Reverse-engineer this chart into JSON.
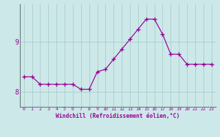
{
  "xlabel": "Windchill (Refroidissement éolien,°C)",
  "x": [
    0,
    1,
    2,
    3,
    4,
    5,
    6,
    7,
    8,
    9,
    10,
    11,
    12,
    13,
    14,
    15,
    16,
    17,
    18,
    19,
    20,
    21,
    22,
    23
  ],
  "y": [
    8.3,
    8.3,
    8.15,
    8.15,
    8.15,
    8.15,
    8.15,
    8.05,
    8.05,
    8.4,
    8.45,
    8.65,
    8.85,
    9.05,
    9.25,
    9.45,
    9.45,
    9.15,
    8.75,
    8.75,
    8.55,
    8.55,
    8.55,
    8.55
  ],
  "line_color": "#990099",
  "marker": "+",
  "marker_size": 4,
  "bg_color": "#cce8e8",
  "grid_color": "#aacccc",
  "ylim": [
    7.7,
    9.75
  ],
  "yticks": [
    8,
    9
  ],
  "xlim": [
    -0.5,
    23.5
  ],
  "xticks": [
    0,
    1,
    2,
    3,
    4,
    5,
    6,
    7,
    8,
    9,
    10,
    11,
    12,
    13,
    14,
    15,
    16,
    17,
    18,
    19,
    20,
    21,
    22,
    23
  ]
}
